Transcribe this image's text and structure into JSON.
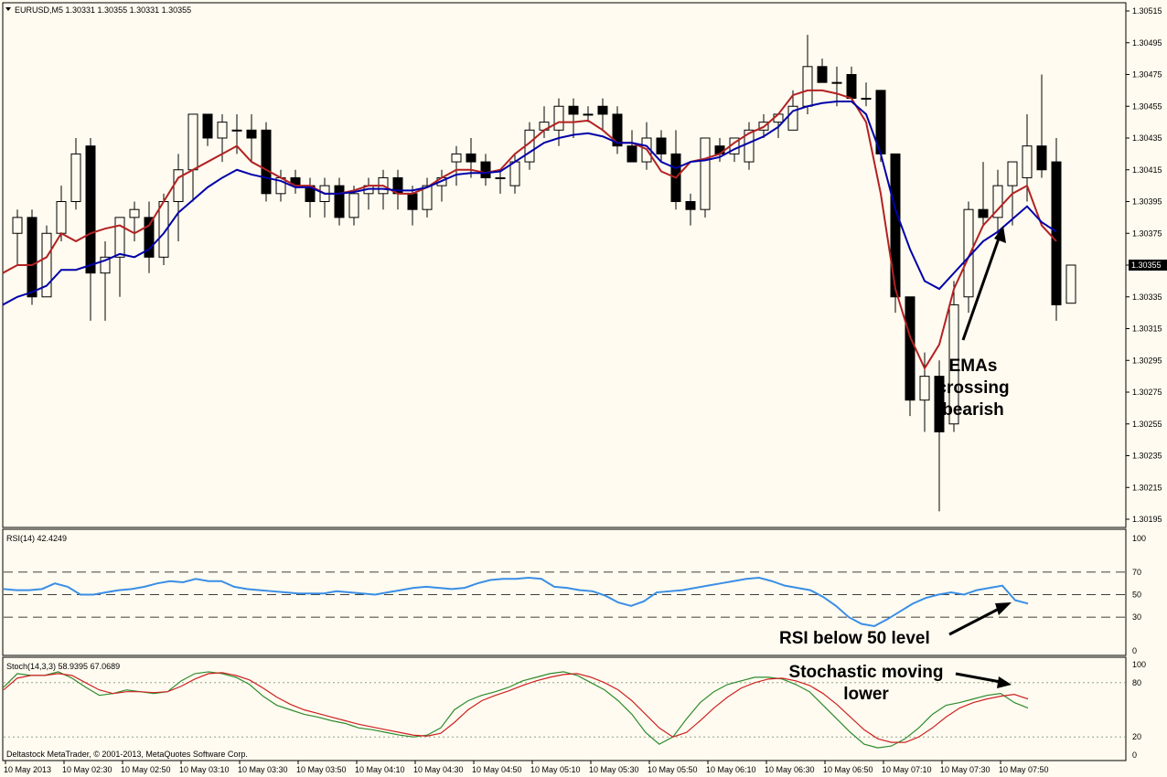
{
  "main_header": "EURUSD,M5  1.30331 1.30355 1.30331 1.30355",
  "current_price_label": "1.30355",
  "rsi_header": "RSI(14) 42.4249",
  "stoch_header": "Stoch(14,3,3) 58.9395 67.0689",
  "copyright": "Deltastock MetaTrader, © 2001-2013, MetaQuotes Software Corp.",
  "annotations": {
    "ema": [
      "EMAs",
      "crossing",
      "bearish"
    ],
    "rsi": "RSI below 50 level",
    "stoch": [
      "Stochastic moving",
      "lower"
    ]
  },
  "colors": {
    "background": "#fffbf0",
    "ema_fast": "#b22222",
    "ema_slow": "#0000aa",
    "rsi": "#3a8ee6",
    "stoch_main": "#2e8b2e",
    "stoch_signal": "#cc2222"
  },
  "chart_data": [
    {
      "type": "candlestick",
      "symbol": "EURUSD",
      "timeframe": "M5",
      "ylim": [
        1.30185,
        1.30525
      ],
      "y_ticks": [
        "1.30515",
        "1.30495",
        "1.30475",
        "1.30455",
        "1.30435",
        "1.30415",
        "1.30395",
        "1.30375",
        "1.30355",
        "1.30335",
        "1.30315",
        "1.30295",
        "1.30275",
        "1.30255",
        "1.30235",
        "1.30215",
        "1.30195"
      ],
      "x_ticks": [
        "10 May 2013",
        "10 May 02:30",
        "10 May 02:50",
        "10 May 03:10",
        "10 May 03:30",
        "10 May 03:50",
        "10 May 04:10",
        "10 May 04:30",
        "10 May 04:50",
        "10 May 05:10",
        "10 May 05:30",
        "10 May 05:50",
        "10 May 06:10",
        "10 May 06:30",
        "10 May 06:50",
        "10 May 07:10",
        "10 May 07:30",
        "10 May 07:50"
      ],
      "ohlc": [
        [
          1.30375,
          1.3039,
          1.30355,
          1.30385
        ],
        [
          1.30385,
          1.3039,
          1.3033,
          1.30335
        ],
        [
          1.30335,
          1.3038,
          1.30335,
          1.30375
        ],
        [
          1.30375,
          1.30405,
          1.3037,
          1.30395
        ],
        [
          1.30395,
          1.30435,
          1.3039,
          1.30425
        ],
        [
          1.3043,
          1.30435,
          1.3032,
          1.3035
        ],
        [
          1.3035,
          1.3037,
          1.3032,
          1.3036
        ],
        [
          1.3036,
          1.30385,
          1.30335,
          1.30385
        ],
        [
          1.30385,
          1.30395,
          1.3037,
          1.3039
        ],
        [
          1.30385,
          1.30395,
          1.3035,
          1.3036
        ],
        [
          1.3036,
          1.304,
          1.30355,
          1.30395
        ],
        [
          1.30395,
          1.30425,
          1.3037,
          1.30415
        ],
        [
          1.30415,
          1.3045,
          1.30395,
          1.3045
        ],
        [
          1.3045,
          1.3045,
          1.3043,
          1.30435
        ],
        [
          1.30435,
          1.3045,
          1.3042,
          1.30445
        ],
        [
          1.3044,
          1.3045,
          1.30425,
          1.3044
        ],
        [
          1.3044,
          1.3045,
          1.3042,
          1.30435
        ],
        [
          1.3044,
          1.30445,
          1.30395,
          1.304
        ],
        [
          1.304,
          1.30415,
          1.30395,
          1.3041
        ],
        [
          1.3041,
          1.30415,
          1.304,
          1.30405
        ],
        [
          1.30405,
          1.3041,
          1.30385,
          1.30395
        ],
        [
          1.30395,
          1.3041,
          1.30385,
          1.30405
        ],
        [
          1.30405,
          1.3041,
          1.3038,
          1.30385
        ],
        [
          1.30385,
          1.30405,
          1.3038,
          1.304
        ],
        [
          1.304,
          1.3041,
          1.3039,
          1.30405
        ],
        [
          1.304,
          1.30415,
          1.3039,
          1.3041
        ],
        [
          1.3041,
          1.30415,
          1.3039,
          1.304
        ],
        [
          1.304,
          1.30405,
          1.3038,
          1.3039
        ],
        [
          1.3039,
          1.3041,
          1.30385,
          1.30405
        ],
        [
          1.30405,
          1.30415,
          1.30395,
          1.3041
        ],
        [
          1.3042,
          1.3043,
          1.30405,
          1.30425
        ],
        [
          1.30425,
          1.30435,
          1.3041,
          1.3042
        ],
        [
          1.3042,
          1.30425,
          1.30405,
          1.3041
        ],
        [
          1.3041,
          1.30415,
          1.304,
          1.3041
        ],
        [
          1.30405,
          1.30425,
          1.304,
          1.3042
        ],
        [
          1.3042,
          1.30445,
          1.30415,
          1.3044
        ],
        [
          1.3044,
          1.30455,
          1.30435,
          1.30445
        ],
        [
          1.3044,
          1.3046,
          1.3043,
          1.30455
        ],
        [
          1.30455,
          1.3046,
          1.30435,
          1.3045
        ],
        [
          1.3045,
          1.30455,
          1.30445,
          1.3045
        ],
        [
          1.30455,
          1.3046,
          1.3044,
          1.3045
        ],
        [
          1.3045,
          1.30455,
          1.30425,
          1.3043
        ],
        [
          1.3043,
          1.3044,
          1.3042,
          1.3042
        ],
        [
          1.3042,
          1.30445,
          1.30415,
          1.30435
        ],
        [
          1.30435,
          1.3044,
          1.3042,
          1.30425
        ],
        [
          1.30425,
          1.3044,
          1.3039,
          1.30395
        ],
        [
          1.30395,
          1.304,
          1.3038,
          1.3039
        ],
        [
          1.3039,
          1.30435,
          1.30385,
          1.30435
        ],
        [
          1.3043,
          1.30435,
          1.3042,
          1.30425
        ],
        [
          1.30425,
          1.30435,
          1.3042,
          1.30435
        ],
        [
          1.3042,
          1.30445,
          1.30415,
          1.3044
        ],
        [
          1.3044,
          1.3045,
          1.30435,
          1.30445
        ],
        [
          1.30445,
          1.3045,
          1.30435,
          1.3045
        ],
        [
          1.3044,
          1.30465,
          1.3044,
          1.30455
        ],
        [
          1.30455,
          1.305,
          1.3045,
          1.3048
        ],
        [
          1.3048,
          1.30485,
          1.3047,
          1.3047
        ],
        [
          1.3047,
          1.3048,
          1.30455,
          1.3047
        ],
        [
          1.30475,
          1.3048,
          1.3046,
          1.3046
        ],
        [
          1.3046,
          1.3047,
          1.30455,
          1.3046
        ],
        [
          1.30465,
          1.30465,
          1.3042,
          1.30425
        ],
        [
          1.30425,
          1.30425,
          1.30325,
          1.30335
        ],
        [
          1.30335,
          1.30335,
          1.3026,
          1.3027
        ],
        [
          1.3027,
          1.303,
          1.3025,
          1.30285
        ],
        [
          1.30285,
          1.30295,
          1.302,
          1.3025
        ],
        [
          1.30255,
          1.30345,
          1.3025,
          1.3033
        ],
        [
          1.30335,
          1.30395,
          1.30325,
          1.3039
        ],
        [
          1.3039,
          1.3042,
          1.3038,
          1.30385
        ],
        [
          1.30385,
          1.30415,
          1.3037,
          1.30405
        ],
        [
          1.30405,
          1.3042,
          1.3038,
          1.3042
        ],
        [
          1.3041,
          1.3045,
          1.30395,
          1.3043
        ],
        [
          1.3043,
          1.30475,
          1.3041,
          1.30415
        ],
        [
          1.3042,
          1.30435,
          1.3032,
          1.3033
        ],
        [
          1.30331,
          1.30355,
          1.30331,
          1.30355
        ]
      ],
      "series": [
        {
          "name": "EMA fast",
          "values": [
            1.3035,
            1.30355,
            1.30355,
            1.3036,
            1.30375,
            1.3037,
            1.30375,
            1.30378,
            1.3038,
            1.30375,
            1.3038,
            1.30395,
            1.3041,
            1.30415,
            1.3042,
            1.30425,
            1.3043,
            1.3042,
            1.30415,
            1.3041,
            1.30405,
            1.30405,
            1.304,
            1.304,
            1.30402,
            1.30405,
            1.30405,
            1.304,
            1.304,
            1.30404,
            1.3041,
            1.30415,
            1.30415,
            1.30413,
            1.30415,
            1.30425,
            1.30432,
            1.3044,
            1.30445,
            1.30445,
            1.30446,
            1.3044,
            1.30432,
            1.30432,
            1.30428,
            1.30414,
            1.3041,
            1.3042,
            1.30422,
            1.30425,
            1.30432,
            1.30438,
            1.30442,
            1.3045,
            1.30462,
            1.30465,
            1.30465,
            1.30463,
            1.3046,
            1.30445,
            1.304,
            1.3034,
            1.3031,
            1.3029,
            1.30305,
            1.3034,
            1.3036,
            1.3038,
            1.3039,
            1.304,
            1.30405,
            1.3038,
            1.3037
          ]
        },
        {
          "name": "EMA slow",
          "values": [
            1.3033,
            1.30335,
            1.30338,
            1.30342,
            1.30352,
            1.30352,
            1.30355,
            1.30358,
            1.30362,
            1.3036,
            1.30365,
            1.30375,
            1.30388,
            1.30396,
            1.30404,
            1.3041,
            1.30415,
            1.30412,
            1.3041,
            1.30408,
            1.30404,
            1.30404,
            1.304,
            1.304,
            1.30401,
            1.30403,
            1.30403,
            1.30402,
            1.30402,
            1.30404,
            1.30408,
            1.30412,
            1.30413,
            1.30413,
            1.30414,
            1.3042,
            1.30426,
            1.30432,
            1.30435,
            1.30437,
            1.30438,
            1.30436,
            1.30432,
            1.30432,
            1.3043,
            1.3042,
            1.30416,
            1.3042,
            1.30421,
            1.30423,
            1.30428,
            1.30432,
            1.30436,
            1.30442,
            1.30452,
            1.30455,
            1.30457,
            1.30458,
            1.30458,
            1.3045,
            1.30425,
            1.3039,
            1.30365,
            1.30345,
            1.3034,
            1.3035,
            1.3036,
            1.3037,
            1.30376,
            1.30384,
            1.30392,
            1.30382,
            1.30376
          ]
        }
      ]
    },
    {
      "type": "line",
      "title": "RSI(14) 42.4249",
      "ylim": [
        0,
        100
      ],
      "y_ticks": [
        "100",
        "70",
        "50",
        "30",
        "0"
      ],
      "levels": [
        70,
        50,
        30
      ],
      "series": [
        {
          "name": "RSI(14)",
          "values": [
            55,
            54,
            54,
            55,
            60,
            57,
            50,
            50,
            52,
            54,
            55,
            57,
            60,
            62,
            61,
            64,
            62,
            62,
            57,
            55,
            54,
            53,
            52,
            51,
            51,
            51,
            53,
            52,
            51,
            50,
            52,
            54,
            56,
            57,
            56,
            55,
            56,
            60,
            63,
            64,
            64,
            65,
            64,
            57,
            56,
            54,
            53,
            49,
            43,
            40,
            44,
            52,
            53,
            54,
            56,
            58,
            60,
            62,
            64,
            65,
            62,
            58,
            56,
            54,
            48,
            40,
            30,
            24,
            22,
            28,
            35,
            42,
            47,
            50,
            52,
            50,
            54,
            56,
            58,
            45,
            42
          ]
        }
      ]
    },
    {
      "type": "line",
      "title": "Stoch(14,3,3) 58.9395 67.0689",
      "ylim": [
        0,
        100
      ],
      "y_ticks": [
        "100",
        "80",
        "20",
        "0"
      ],
      "levels": [
        80,
        20
      ],
      "series": [
        {
          "name": "Stoch main",
          "values": [
            75,
            90,
            88,
            88,
            92,
            85,
            75,
            66,
            68,
            72,
            70,
            68,
            70,
            82,
            90,
            92,
            90,
            86,
            78,
            65,
            55,
            50,
            45,
            42,
            38,
            35,
            30,
            28,
            25,
            22,
            20,
            22,
            30,
            50,
            60,
            66,
            70,
            75,
            82,
            86,
            90,
            92,
            88,
            80,
            72,
            60,
            45,
            25,
            12,
            20,
            40,
            58,
            70,
            78,
            82,
            86,
            86,
            84,
            78,
            70,
            55,
            40,
            25,
            12,
            8,
            10,
            18,
            30,
            45,
            55,
            58,
            62,
            66,
            68,
            58,
            52
          ]
        },
        {
          "name": "Stoch signal",
          "values": [
            72,
            85,
            88,
            88,
            90,
            88,
            80,
            72,
            68,
            70,
            70,
            69,
            70,
            76,
            84,
            90,
            91,
            88,
            83,
            74,
            64,
            56,
            50,
            46,
            42,
            38,
            34,
            31,
            28,
            25,
            22,
            21,
            24,
            36,
            50,
            60,
            66,
            71,
            77,
            82,
            86,
            89,
            90,
            86,
            80,
            72,
            60,
            45,
            30,
            20,
            25,
            38,
            52,
            64,
            74,
            80,
            84,
            85,
            82,
            77,
            68,
            56,
            42,
            28,
            18,
            14,
            14,
            20,
            30,
            42,
            52,
            58,
            62,
            65,
            67,
            62
          ]
        }
      ]
    }
  ]
}
